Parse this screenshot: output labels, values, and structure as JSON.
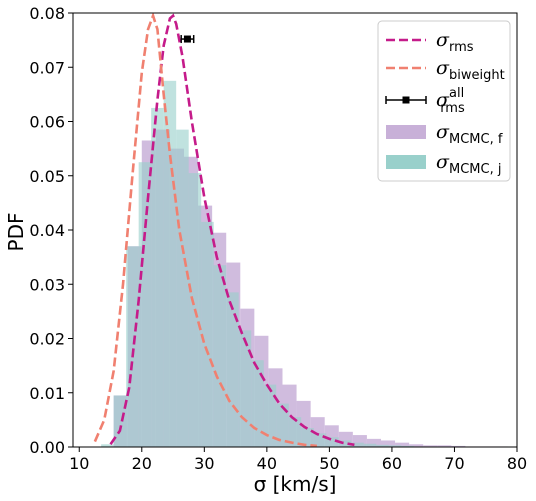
{
  "chart_data": {
    "type": "histogram",
    "xlabel": "σ [km/s]",
    "ylabel": "PDF",
    "xlim": [
      9,
      80
    ],
    "ylim": [
      0,
      0.08
    ],
    "xticks": [
      10,
      20,
      30,
      40,
      50,
      60,
      70,
      80
    ],
    "yticks": [
      0.0,
      0.01,
      0.02,
      0.03,
      0.04,
      0.05,
      0.06,
      0.07,
      0.08
    ],
    "xtick_labels": [
      "10",
      "20",
      "30",
      "40",
      "50",
      "60",
      "70",
      "80"
    ],
    "ytick_labels": [
      "0.00",
      "0.01",
      "0.02",
      "0.03",
      "0.04",
      "0.05",
      "0.06",
      "0.07",
      "0.08"
    ],
    "grid": false,
    "legend_position": "top-right",
    "legend": [
      {
        "symbol": "σ",
        "sub": "rms",
        "sup": "",
        "kind": "dashed-line",
        "color": "#c51b8a"
      },
      {
        "symbol": "σ",
        "sub": "biweight",
        "sup": "",
        "kind": "dashed-line",
        "color": "#f08070"
      },
      {
        "symbol": "σ",
        "sub": "rms",
        "sup": "all",
        "kind": "errorbar",
        "color": "#000000"
      },
      {
        "symbol": "σ",
        "sub": "MCMC, f",
        "sup": "",
        "kind": "patch",
        "color": "#c8b0d8"
      },
      {
        "symbol": "σ",
        "sub": "MCMC, j",
        "sup": "",
        "kind": "patch",
        "color": "#99d0cb"
      }
    ],
    "histograms": [
      {
        "label": "σ_MCMC,f",
        "color": "#c8b0d8",
        "bin_edges": [
          15.5,
          17.75,
          20.0,
          22.25,
          24.5,
          26.75,
          29.0,
          31.25,
          33.5,
          35.75,
          38.0,
          40.25,
          42.5,
          44.75,
          47.0,
          49.25,
          51.5,
          53.75,
          56.0,
          58.25,
          60.5,
          62.75,
          65.0,
          67.25,
          69.5,
          71.75,
          74.0,
          76.25,
          78.5
        ],
        "values": [
          0.0095,
          0.037,
          0.0565,
          0.0585,
          0.055,
          0.0535,
          0.0445,
          0.0395,
          0.034,
          0.0255,
          0.0205,
          0.0145,
          0.0115,
          0.0085,
          0.0055,
          0.004,
          0.0028,
          0.0022,
          0.0015,
          0.0012,
          0.0008,
          0.0005,
          0.0003,
          0.0003,
          0.0002,
          0.0001,
          0.0001,
          0.0001
        ]
      },
      {
        "label": "σ_MCMC,j",
        "color": "#99d0cb",
        "bin_edges": [
          13.5,
          15.5,
          17.5,
          19.5,
          21.5,
          23.5,
          25.5,
          27.5,
          29.5,
          31.5,
          33.5,
          35.5,
          37.5,
          39.5,
          41.5,
          43.5,
          45.5,
          47.5,
          49.5,
          51.5,
          53.5,
          55.5,
          57.5,
          59.5,
          61.5,
          63.5,
          65.5
        ],
        "values": [
          0.0005,
          0.0095,
          0.037,
          0.0525,
          0.0625,
          0.0675,
          0.0585,
          0.0505,
          0.0415,
          0.0335,
          0.0285,
          0.0215,
          0.016,
          0.0115,
          0.008,
          0.0055,
          0.0035,
          0.0025,
          0.0018,
          0.0012,
          0.0008,
          0.0006,
          0.0004,
          0.0003,
          0.0002,
          0.0001
        ]
      }
    ],
    "curves": [
      {
        "label": "σ_rms",
        "color": "#c51b8a",
        "style": "dashed",
        "x": [
          15.0,
          16.5,
          18.0,
          19.5,
          21.0,
          22.5,
          23.5,
          24.5,
          25.0,
          25.5,
          26.5,
          28.0,
          30.0,
          32.0,
          34.0,
          36.0,
          38.0,
          40.0,
          42.0,
          44.0,
          46.0,
          48.0,
          50.0,
          52.0,
          54.0
        ],
        "y": [
          0.0005,
          0.003,
          0.011,
          0.027,
          0.046,
          0.064,
          0.074,
          0.079,
          0.0795,
          0.078,
          0.072,
          0.06,
          0.046,
          0.035,
          0.027,
          0.021,
          0.0155,
          0.0115,
          0.008,
          0.0055,
          0.0037,
          0.0024,
          0.0015,
          0.0008,
          0.0004
        ]
      },
      {
        "label": "σ_biweight",
        "color": "#f08070",
        "style": "dashed",
        "x": [
          12.5,
          14.0,
          15.5,
          17.0,
          18.5,
          20.0,
          21.0,
          21.8,
          22.5,
          23.5,
          24.5,
          26.0,
          28.0,
          30.0,
          32.0,
          34.0,
          36.0,
          38.0,
          40.0,
          42.0,
          44.0,
          46.0,
          48.0
        ],
        "y": [
          0.001,
          0.005,
          0.014,
          0.03,
          0.05,
          0.069,
          0.077,
          0.0795,
          0.077,
          0.065,
          0.054,
          0.04,
          0.0275,
          0.019,
          0.013,
          0.0085,
          0.0055,
          0.0035,
          0.0022,
          0.0013,
          0.0008,
          0.0004,
          0.0002
        ]
      }
    ],
    "errorbar": {
      "label": "σ_rms^all",
      "x": 27.3,
      "y": 0.0752,
      "xerr": 1.0,
      "color": "#000000"
    }
  }
}
